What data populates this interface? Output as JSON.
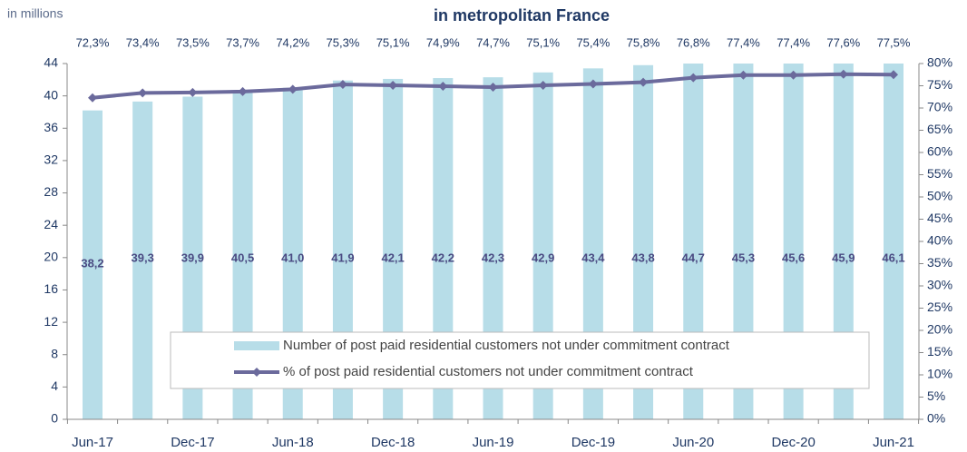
{
  "chart_data": {
    "type": "bar_line",
    "title": "in metropolitan France",
    "y_label": "in millions",
    "categories": [
      "Jun-17",
      null,
      "Dec-17",
      null,
      "Jun-18",
      null,
      "Dec-18",
      null,
      "Jun-19",
      null,
      "Dec-19",
      null,
      "Jun-20",
      null,
      "Dec-20",
      null,
      "Jun-21"
    ],
    "series": [
      {
        "name": "Number of post paid residential customers not under commitment contract",
        "type": "bar",
        "color": "#b7dde8",
        "values": [
          38.2,
          39.3,
          39.9,
          40.5,
          41.0,
          41.9,
          42.1,
          42.2,
          42.3,
          42.9,
          43.4,
          43.8,
          44.7,
          45.3,
          45.6,
          45.9,
          46.1
        ],
        "value_labels": [
          "38,2",
          "39,3",
          "39,9",
          "40,5",
          "41,0",
          "41,9",
          "42,1",
          "42,2",
          "42,3",
          "42,9",
          "43,4",
          "43,8",
          "44,7",
          "45,3",
          "45,6",
          "45,9",
          "46,1"
        ]
      },
      {
        "name": "% of post paid residential customers not under commitment contract",
        "type": "line",
        "color": "#6b6a9c",
        "axis": "y2",
        "values": [
          72.3,
          73.4,
          73.5,
          73.7,
          74.2,
          75.3,
          75.1,
          74.9,
          74.7,
          75.1,
          75.4,
          75.8,
          76.8,
          77.4,
          77.4,
          77.6,
          77.5
        ],
        "value_labels": [
          "72,3%",
          "73,4%",
          "73,5%",
          "73,7%",
          "74,2%",
          "75,3%",
          "75,1%",
          "74,9%",
          "74,7%",
          "75,1%",
          "75,4%",
          "75,8%",
          "76,8%",
          "77,4%",
          "77,4%",
          "77,6%",
          "77,5%"
        ]
      }
    ],
    "ylim": [
      0,
      44
    ],
    "yticks": [
      0,
      4,
      8,
      12,
      16,
      20,
      24,
      28,
      32,
      36,
      40,
      44
    ],
    "y2lim": [
      0,
      80
    ],
    "y2ticks": [
      {
        "value": 0,
        "label": "0%"
      },
      {
        "value": 5,
        "label": "5%"
      },
      {
        "value": 10,
        "label": "10%"
      },
      {
        "value": 15,
        "label": "15%"
      },
      {
        "value": 20,
        "label": "20%"
      },
      {
        "value": 25,
        "label": "25%"
      },
      {
        "value": 30,
        "label": "30%"
      },
      {
        "value": 35,
        "label": "35%"
      },
      {
        "value": 40,
        "label": "40%"
      },
      {
        "value": 45,
        "label": "45%"
      },
      {
        "value": 50,
        "label": "50%"
      },
      {
        "value": 55,
        "label": "55%"
      },
      {
        "value": 60,
        "label": "60%"
      },
      {
        "value": 65,
        "label": "65%"
      },
      {
        "value": 70,
        "label": "70%"
      },
      {
        "value": 75,
        "label": "75%"
      },
      {
        "value": 80,
        "label": "80%"
      }
    ],
    "legend": "inside-bottom"
  }
}
